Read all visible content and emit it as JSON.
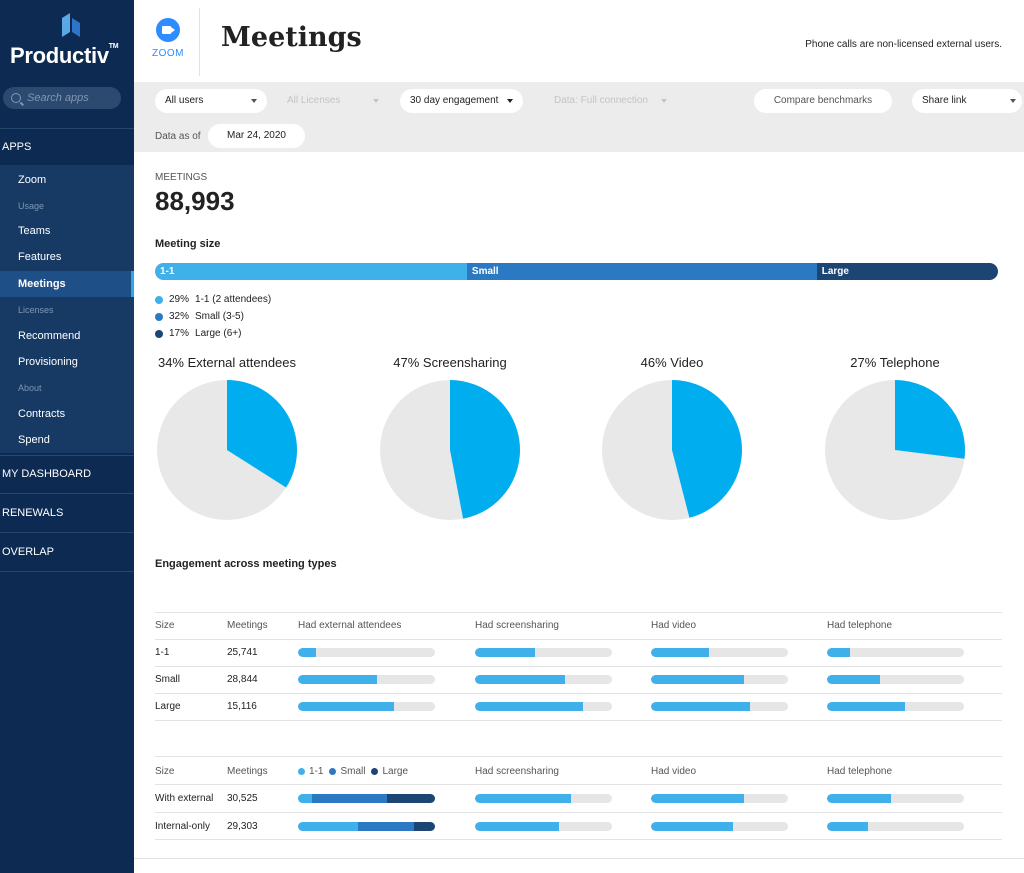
{
  "brand": {
    "name": "Productiv",
    "tm": "TM"
  },
  "search": {
    "placeholder": "Search apps"
  },
  "nav": {
    "apps_label": "APPS",
    "items": [
      {
        "label": "Zoom",
        "type": "item"
      },
      {
        "label": "Usage",
        "type": "group"
      },
      {
        "label": "Teams",
        "type": "item"
      },
      {
        "label": "Features",
        "type": "item"
      },
      {
        "label": "Meetings",
        "type": "active"
      },
      {
        "label": "Licenses",
        "type": "group"
      },
      {
        "label": "Recommend",
        "type": "item"
      },
      {
        "label": "Provisioning",
        "type": "item"
      },
      {
        "label": "About",
        "type": "group"
      },
      {
        "label": "Contracts",
        "type": "item"
      },
      {
        "label": "Spend",
        "type": "item"
      }
    ],
    "sections": [
      "MY DASHBOARD",
      "RENEWALS",
      "OVERLAP"
    ]
  },
  "header": {
    "app_name": "ZOOM",
    "title": "Meetings",
    "note": "Phone calls are non-licensed external users."
  },
  "filters": {
    "users": "All users",
    "licenses": "All Licenses",
    "engagement": "30 day engagement",
    "data": "Data: Full connection",
    "compare": "Compare benchmarks",
    "share": "Share link",
    "data_as_of_label": "Data as of",
    "date": "Mar 24, 2020"
  },
  "summary": {
    "label": "MEETINGS",
    "count": "88,993"
  },
  "meeting_size": {
    "title": "Meeting size",
    "segments": [
      {
        "label": "1-1",
        "share": 0.37,
        "color": "#3fb0e9"
      },
      {
        "label": "Small",
        "share": 0.415,
        "color": "#2a79c2"
      },
      {
        "label": "Large",
        "share": 0.215,
        "color": "#1c4573"
      }
    ],
    "legend": [
      {
        "pct": "29%",
        "label": "1-1 (2 attendees)",
        "color": "#3fb0e9"
      },
      {
        "pct": "32%",
        "label": "Small (3-5)",
        "color": "#2a79c2"
      },
      {
        "pct": "17%",
        "label": "Large (6+)",
        "color": "#1c4573"
      }
    ]
  },
  "pies": [
    {
      "title": "34% External attendees",
      "value": 0.34
    },
    {
      "title": "47% Screensharing",
      "value": 0.47
    },
    {
      "title": "46% Video",
      "value": 0.46
    },
    {
      "title": "27% Telephone",
      "value": 0.27
    }
  ],
  "colors": {
    "accent": "#00aeef",
    "pie_bg": "#e8e8e8",
    "bar": "#3fb0e9"
  },
  "engagement": {
    "title": "Engagement across meeting types",
    "headers": [
      "Size",
      "Meetings",
      "Had external attendees",
      "Had screensharing",
      "Had video",
      "Had telephone"
    ],
    "rows": [
      {
        "size": "1-1",
        "meetings": "25,741",
        "bars": [
          0.13,
          0.44,
          0.42,
          0.17
        ]
      },
      {
        "size": "Small",
        "meetings": "28,844",
        "bars": [
          0.58,
          0.66,
          0.68,
          0.39
        ]
      },
      {
        "size": "Large",
        "meetings": "15,116",
        "bars": [
          0.7,
          0.79,
          0.72,
          0.57
        ]
      }
    ]
  },
  "external": {
    "headers": [
      "Size",
      "Meetings",
      "Had screensharing",
      "Had video",
      "Had telephone"
    ],
    "legend": [
      "1-1",
      "Small",
      "Large"
    ],
    "rows": [
      {
        "size": "With external",
        "meetings": "30,525",
        "stack": [
          0.1,
          0.55,
          0.35
        ],
        "bars": [
          0.7,
          0.68,
          0.47
        ]
      },
      {
        "size": "Internal-only",
        "meetings": "29,303",
        "stack": [
          0.44,
          0.41,
          0.15
        ],
        "bars": [
          0.61,
          0.6,
          0.3
        ]
      }
    ]
  }
}
